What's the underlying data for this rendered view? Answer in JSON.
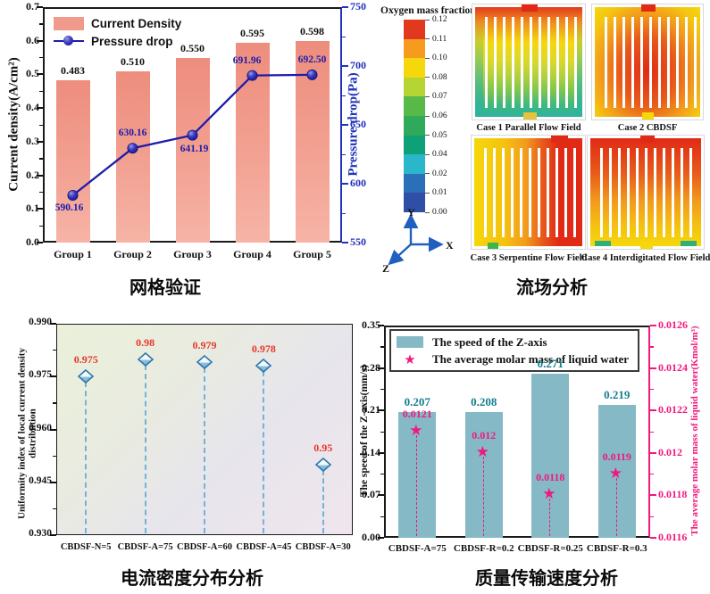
{
  "captions": {
    "top_left": "网格验证",
    "top_right": "流场分析",
    "bottom_left": "电流密度分布分析",
    "bottom_right": "质量传输速度分析"
  },
  "chart_data": [
    {
      "id": "grid_validation",
      "type": "bar",
      "subtype": "bar+line dual axis",
      "categories": [
        "Group 1",
        "Group 2",
        "Group 3",
        "Group 4",
        "Group 5"
      ],
      "series": [
        {
          "name": "Current Density",
          "type": "bar",
          "axis": "left",
          "values": [
            0.483,
            0.51,
            0.55,
            0.595,
            0.598
          ],
          "labels": [
            "0.483",
            "0.510",
            "0.550",
            "0.595",
            "0.598"
          ],
          "color": "#f09a8c"
        },
        {
          "name": "Pressure drop",
          "type": "line",
          "axis": "right",
          "values": [
            590.16,
            630.16,
            641.19,
            691.96,
            692.5
          ],
          "labels": [
            "590.16",
            "630.16",
            "641.19",
            "691.96",
            "692.50"
          ],
          "color": "#1c1caa"
        }
      ],
      "left_axis": {
        "label": "Current density(A/cm²)",
        "min": 0.0,
        "max": 0.7,
        "ticks": [
          "0.0",
          "0.1",
          "0.2",
          "0.3",
          "0.4",
          "0.5",
          "0.6",
          "0.7"
        ],
        "color": "#111111"
      },
      "right_axis": {
        "label": "Pressure drop(Pa)",
        "min": 550,
        "max": 750,
        "ticks": [
          "550",
          "600",
          "650",
          "700",
          "750"
        ],
        "color": "#2233bb"
      },
      "grid": false,
      "legend_position": "top-left-inside"
    },
    {
      "id": "flow_field_analysis",
      "type": "heatmap",
      "subtype": "CFD contour thumbnails",
      "colorbar": {
        "title": "Oxygen mass fraction",
        "tick_labels": [
          "0.12",
          "0.11",
          "0.10",
          "0.08",
          "0.07",
          "0.06",
          "0.05",
          "0.04",
          "0.02",
          "0.01",
          "0.00"
        ],
        "colors_top_to_bottom": [
          "#e0391e",
          "#f79b1f",
          "#f5d70c",
          "#b6d433",
          "#57b947",
          "#2fa95a",
          "#0ea178",
          "#29b7c9",
          "#2a6fb8",
          "#2f4ea6"
        ]
      },
      "axis_triad": [
        "Y",
        "X",
        "Z"
      ],
      "cases": [
        "Case 1 Parallel Flow Field",
        "Case 2 CBDSF",
        "Case 3 Serpentine Flow Field",
        "Case 4 Interdigitated Flow Field"
      ]
    },
    {
      "id": "current_density_uniformity",
      "type": "scatter",
      "subtype": "stem + diamond markers",
      "categories": [
        "CBDSF-N=5",
        "CBDSF-A=75",
        "CBDSF-A=60",
        "CBDSF-A=45",
        "CBDSF-A=30"
      ],
      "values": [
        0.975,
        0.98,
        0.979,
        0.978,
        0.95
      ],
      "labels": [
        "0.975",
        "0.98",
        "0.979",
        "0.978",
        "0.95"
      ],
      "ylabel": "Uniformity index of local current density distribution",
      "ylim": [
        0.93,
        0.99
      ],
      "yticks": [
        "0.930",
        "0.945",
        "0.960",
        "0.975",
        "0.990"
      ],
      "marker_color": "#2e77ad",
      "label_color": "#e8392a",
      "grid": false
    },
    {
      "id": "mass_transport_speed",
      "type": "bar",
      "subtype": "bar + star dual axis",
      "categories": [
        "CBDSF-A=75",
        "CBDSF-R=0.2",
        "CBDSF-R=0.25",
        "CBDSF-R=0.3"
      ],
      "series": [
        {
          "name": "The speed of the Z-axis",
          "type": "bar",
          "axis": "left",
          "values": [
            0.207,
            0.208,
            0.271,
            0.219
          ],
          "labels": [
            "0.207",
            "0.208",
            "0.271",
            "0.219"
          ],
          "color": "#84b9c5",
          "label_color": "#15808f"
        },
        {
          "name": "The average molar mass of liquid water",
          "type": "star",
          "axis": "right",
          "values": [
            0.0121,
            0.012,
            0.0118,
            0.0119
          ],
          "labels": [
            "0.0121",
            "0.012",
            "0.0118",
            "0.0119"
          ],
          "color": "#f2187d"
        }
      ],
      "left_axis": {
        "label": "The speed of the Z-axis(mm/s)",
        "min": 0.0,
        "max": 0.35,
        "ticks": [
          "0.00",
          "0.07",
          "0.14",
          "0.21",
          "0.28",
          "0.35"
        ],
        "color": "#111111"
      },
      "right_axis": {
        "label": "The average molar mass of liquid water(Kmol/m³)",
        "min": 0.0116,
        "max": 0.0126,
        "ticks": [
          "0.0116",
          "0.0118",
          "0.012",
          "0.0122",
          "0.0124",
          "0.0126"
        ],
        "color": "#f2187d"
      },
      "grid": false,
      "legend_position": "top-inside-boxed"
    }
  ]
}
